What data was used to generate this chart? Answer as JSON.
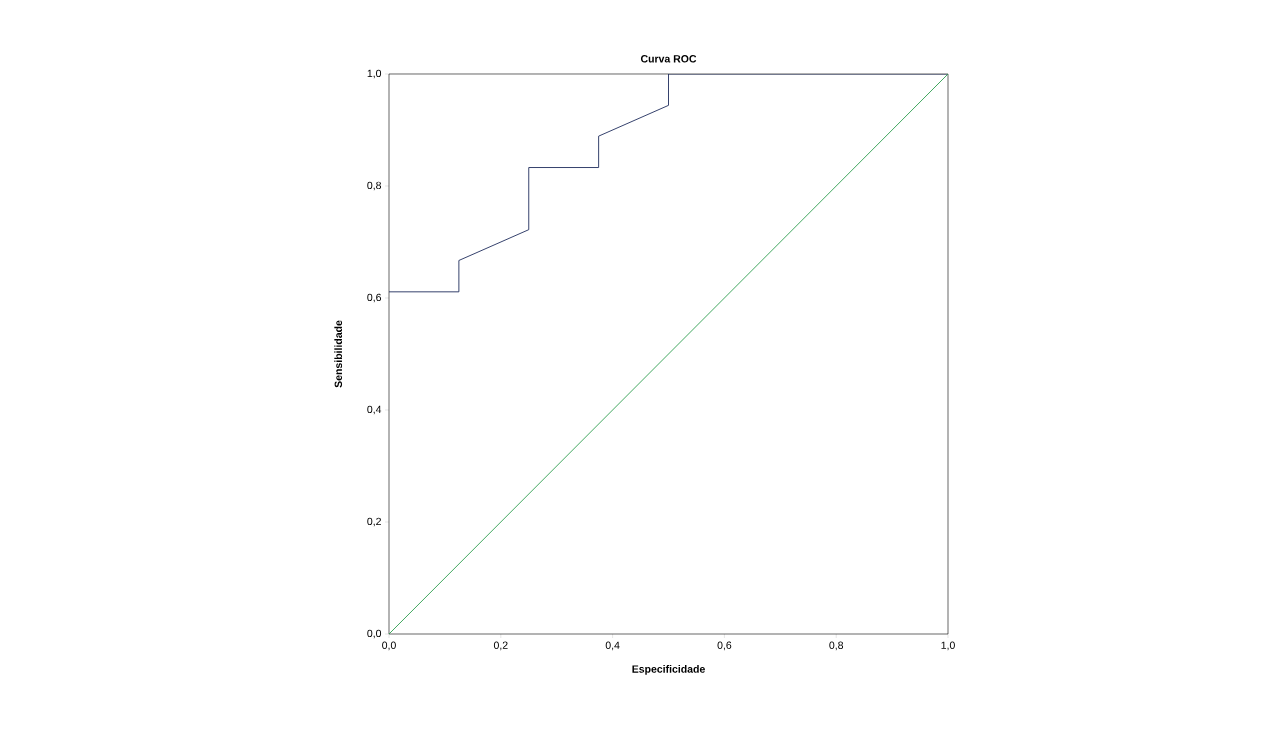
{
  "chart_data": {
    "type": "line",
    "title": "Curva ROC",
    "xlabel": "Especificidade",
    "ylabel": "Sensibilidade",
    "series": [
      {
        "color": "#1f2d5c",
        "x": [
          0,
          0.125,
          0.125,
          0.25,
          0.25,
          0.375,
          0.375,
          0.5,
          0.5,
          1
        ],
        "values": [
          0.611,
          0.611,
          0.667,
          0.722,
          0.833,
          0.833,
          0.889,
          0.944,
          1,
          1
        ]
      },
      {
        "color": "#2e9e4f",
        "x": [
          0,
          1
        ],
        "values": [
          0,
          1
        ]
      }
    ],
    "xlim": [
      0,
      1
    ],
    "ylim": [
      0,
      1
    ],
    "xticks": [
      {
        "value": 0,
        "label": "0,0"
      },
      {
        "value": 0.2,
        "label": "0,2"
      },
      {
        "value": 0.4,
        "label": "0,4"
      },
      {
        "value": 0.6,
        "label": "0,6"
      },
      {
        "value": 0.8,
        "label": "0,8"
      },
      {
        "value": 1,
        "label": "1,0"
      }
    ],
    "yticks": [
      {
        "value": 0,
        "label": "0,0"
      },
      {
        "value": 0.2,
        "label": "0,2"
      },
      {
        "value": 0.4,
        "label": "0,4"
      },
      {
        "value": 0.6,
        "label": "0,6"
      },
      {
        "value": 0.8,
        "label": "0,8"
      },
      {
        "value": 1,
        "label": "1,0"
      }
    ],
    "grid": false,
    "marker": "none",
    "line_style": "solid"
  }
}
